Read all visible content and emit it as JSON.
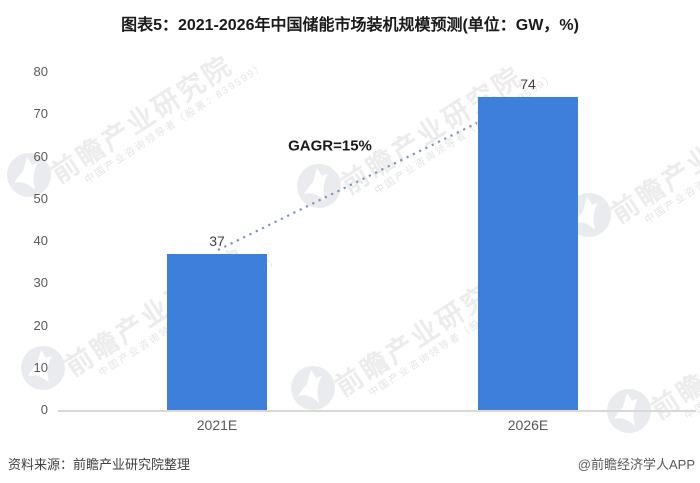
{
  "title": "图表5：2021-2026年中国储能市场装机规模预测(单位：GW，%)",
  "chart_data": {
    "type": "bar",
    "title": "图表5：2021-2026年中国储能市场装机规模预测",
    "unit_note": "单位：GW，%",
    "categories": [
      "2021E",
      "2026E"
    ],
    "values": [
      37,
      74
    ],
    "value_labels": [
      "37",
      "74"
    ],
    "xlabel": "",
    "ylabel": "",
    "ylim": [
      0,
      80
    ],
    "yticks": [
      0,
      10,
      20,
      30,
      40,
      50,
      60,
      70,
      80
    ],
    "grid": false,
    "legend_position": "none",
    "annotation": "GAGR=15%",
    "bar_color": "#3d7fdb",
    "trend_line": {
      "style": "dotted",
      "color": "#7e95b5",
      "from_category": "2021E",
      "to_category": "2026E"
    }
  },
  "footer": {
    "source": "资料来源：前瞻产业研究院整理",
    "credit": "@前瞻经济学人APP"
  },
  "watermark": {
    "text_large": "前瞻产业研究院",
    "text_small": "中国产业咨询领导者（股票：839599）"
  }
}
